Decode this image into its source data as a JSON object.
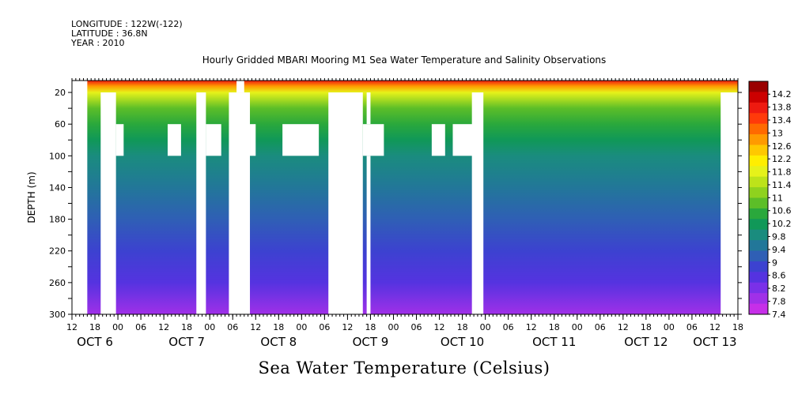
{
  "header": {
    "longitude": "LONGITUDE : 122W(-122)",
    "latitude": "LATITUDE : 36.8N",
    "year": "YEAR : 2010"
  },
  "chart_data": {
    "type": "heatmap",
    "title": "Hourly Gridded MBARI Mooring M1 Sea Water Temperature and Salinity Observations",
    "subtitle": "Sea Water Temperature (Celsius)",
    "ylabel": "DEPTH (m)",
    "xlabel": "",
    "xlim_hours": [
      0,
      174
    ],
    "ylim": [
      300,
      5
    ],
    "y_ticks": [
      20,
      60,
      100,
      140,
      180,
      220,
      260,
      300
    ],
    "x_ticks": [
      {
        "h": 0,
        "l": "12"
      },
      {
        "h": 6,
        "l": "18"
      },
      {
        "h": 12,
        "l": "00"
      },
      {
        "h": 18,
        "l": "06"
      },
      {
        "h": 24,
        "l": "12"
      },
      {
        "h": 30,
        "l": "18"
      },
      {
        "h": 36,
        "l": "00"
      },
      {
        "h": 42,
        "l": "06"
      },
      {
        "h": 48,
        "l": "12"
      },
      {
        "h": 54,
        "l": "18"
      },
      {
        "h": 60,
        "l": "00"
      },
      {
        "h": 66,
        "l": "06"
      },
      {
        "h": 72,
        "l": "12"
      },
      {
        "h": 78,
        "l": "18"
      },
      {
        "h": 84,
        "l": "00"
      },
      {
        "h": 90,
        "l": "06"
      },
      {
        "h": 96,
        "l": "12"
      },
      {
        "h": 102,
        "l": "18"
      },
      {
        "h": 108,
        "l": "00"
      },
      {
        "h": 114,
        "l": "06"
      },
      {
        "h": 120,
        "l": "12"
      },
      {
        "h": 126,
        "l": "18"
      },
      {
        "h": 132,
        "l": "00"
      },
      {
        "h": 138,
        "l": "06"
      },
      {
        "h": 144,
        "l": "12"
      },
      {
        "h": 150,
        "l": "18"
      },
      {
        "h": 156,
        "l": "00"
      },
      {
        "h": 162,
        "l": "06"
      },
      {
        "h": 168,
        "l": "12"
      },
      {
        "h": 174,
        "l": "18"
      }
    ],
    "date_labels": [
      {
        "h": 6,
        "l": "OCT  6"
      },
      {
        "h": 30,
        "l": "OCT  7"
      },
      {
        "h": 54,
        "l": "OCT  8"
      },
      {
        "h": 78,
        "l": "OCT  9"
      },
      {
        "h": 102,
        "l": "OCT 10"
      },
      {
        "h": 126,
        "l": "OCT 11"
      },
      {
        "h": 150,
        "l": "OCT 12"
      },
      {
        "h": 168,
        "l": "OCT 13"
      }
    ],
    "colorbar_labels": [
      "14.2",
      "13.8",
      "13.4",
      "13",
      "12.6",
      "12.2",
      "11.8",
      "11.4",
      "11",
      "10.6",
      "10.2",
      "9.8",
      "9.4",
      "9",
      "8.6",
      "8.2",
      "7.8",
      "7.4"
    ],
    "colorbar_colors": [
      "#9a0000",
      "#cc0000",
      "#ee1a10",
      "#ff3a0a",
      "#ff6a00",
      "#ff9a00",
      "#ffc800",
      "#ffee00",
      "#e6f21a",
      "#bde31a",
      "#8fd21e",
      "#5cbe28",
      "#2aa83c",
      "#109858",
      "#1a8c7e",
      "#227799",
      "#2f5fb5",
      "#3c42d0",
      "#5533e0",
      "#7a30e8",
      "#a030e8",
      "#c62fe8"
    ],
    "depth_temperature_profile": [
      {
        "depth": 5,
        "temp": 13.6
      },
      {
        "depth": 12,
        "temp": 12.8
      },
      {
        "depth": 20,
        "temp": 11.6
      },
      {
        "depth": 40,
        "temp": 10.8
      },
      {
        "depth": 60,
        "temp": 10.4
      },
      {
        "depth": 80,
        "temp": 10.1
      },
      {
        "depth": 100,
        "temp": 9.9
      },
      {
        "depth": 140,
        "temp": 9.6
      },
      {
        "depth": 180,
        "temp": 9.2
      },
      {
        "depth": 220,
        "temp": 8.9
      },
      {
        "depth": 260,
        "temp": 8.5
      },
      {
        "depth": 300,
        "temp": 7.9
      }
    ],
    "missing_data_gaps": [
      {
        "h0": -1,
        "h1": 4,
        "d0": 5,
        "d1": 300
      },
      {
        "h0": 7.5,
        "h1": 11.5,
        "d0": 20,
        "d1": 300
      },
      {
        "h0": 11.5,
        "h1": 13.5,
        "d0": 60,
        "d1": 100
      },
      {
        "h0": 25,
        "h1": 28.5,
        "d0": 60,
        "d1": 100
      },
      {
        "h0": 32.5,
        "h1": 35,
        "d0": 20,
        "d1": 300
      },
      {
        "h0": 35,
        "h1": 39,
        "d0": 60,
        "d1": 100
      },
      {
        "h0": 41,
        "h1": 46.5,
        "d0": 20,
        "d1": 300
      },
      {
        "h0": 43,
        "h1": 45,
        "d0": 5,
        "d1": 20
      },
      {
        "h0": 46.5,
        "h1": 48,
        "d0": 60,
        "d1": 100
      },
      {
        "h0": 55,
        "h1": 64.5,
        "d0": 60,
        "d1": 100
      },
      {
        "h0": 67,
        "h1": 76,
        "d0": 20,
        "d1": 300
      },
      {
        "h0": 76,
        "h1": 81.5,
        "d0": 60,
        "d1": 100
      },
      {
        "h0": 77,
        "h1": 78,
        "d0": 20,
        "d1": 60
      },
      {
        "h0": 77,
        "h1": 78,
        "d0": 100,
        "d1": 300
      },
      {
        "h0": 94,
        "h1": 97.5,
        "d0": 60,
        "d1": 100
      },
      {
        "h0": 99.5,
        "h1": 105.5,
        "d0": 60,
        "d1": 100
      },
      {
        "h0": 104.5,
        "h1": 107.5,
        "d0": 20,
        "d1": 300
      },
      {
        "h0": 169.5,
        "h1": 175,
        "d0": 20,
        "d1": 300
      }
    ]
  }
}
